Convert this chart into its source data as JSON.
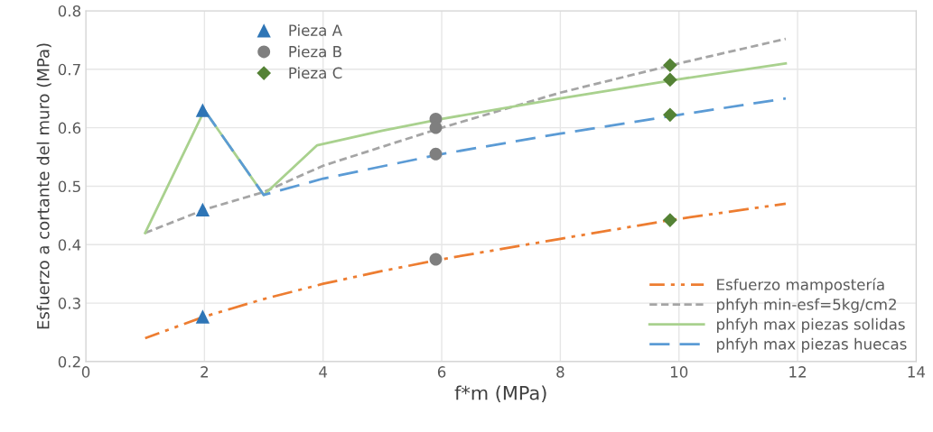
{
  "chart_data": {
    "type": "line",
    "xlabel": "f*m (MPa)",
    "ylabel": "Esfuerzo a cortante del muro (MPa)",
    "xlim": [
      0,
      14
    ],
    "xticks": [
      0,
      2,
      4,
      6,
      8,
      10,
      12,
      14
    ],
    "ylim": [
      0.2,
      0.8
    ],
    "yticks": [
      0.2,
      0.3,
      0.4,
      0.5,
      0.6,
      0.7,
      0.8
    ],
    "grid": true,
    "legend": "bottom right",
    "series": [
      {
        "name": "Esfuerzo mampostería",
        "color": "#ed7d31",
        "line_style": "dashdotdot",
        "x": [
          1,
          2,
          3,
          4,
          5,
          6,
          8,
          9.85,
          11.8
        ],
        "values": [
          0.24,
          0.277,
          0.307,
          0.333,
          0.355,
          0.375,
          0.41,
          0.442,
          0.47
        ]
      },
      {
        "name": "phfyh min-esf=5kg/cm2",
        "color": "#a5a5a5",
        "line_style": "dotted",
        "x": [
          1,
          2,
          3,
          4,
          6,
          8,
          10,
          11.8
        ],
        "values": [
          0.42,
          0.46,
          0.49,
          0.535,
          0.6,
          0.66,
          0.71,
          0.752
        ]
      },
      {
        "name": "phfyh max piezas solidas",
        "color": "#a9d18e",
        "line_style": "solid",
        "x": [
          1,
          2,
          3,
          3.9,
          5,
          6,
          8,
          10,
          11.8
        ],
        "values": [
          0.42,
          0.63,
          0.485,
          0.57,
          0.595,
          0.615,
          0.65,
          0.683,
          0.71
        ]
      },
      {
        "name": "phfyh max piezas huecas",
        "color": "#5b9bd5",
        "line_style": "dashed",
        "x": [
          2,
          3,
          4,
          6,
          8,
          10,
          11.8
        ],
        "values": [
          0.63,
          0.485,
          0.513,
          0.555,
          0.59,
          0.622,
          0.65
        ]
      },
      {
        "name": "Pieza A",
        "type": "scatter",
        "marker": "triangle",
        "color": "#2e75b6",
        "x": [
          1.97,
          1.97,
          1.97
        ],
        "values": [
          0.63,
          0.46,
          0.277
        ]
      },
      {
        "name": "Pieza B",
        "type": "scatter",
        "marker": "circle",
        "color": "#7f7f7f",
        "x": [
          5.9,
          5.9,
          5.9,
          5.9
        ],
        "values": [
          0.615,
          0.6,
          0.555,
          0.375
        ]
      },
      {
        "name": "Pieza C",
        "type": "scatter",
        "marker": "diamond",
        "color": "#548235",
        "x": [
          9.85,
          9.85,
          9.85,
          9.85
        ],
        "values": [
          0.707,
          0.682,
          0.622,
          0.442
        ]
      }
    ]
  }
}
